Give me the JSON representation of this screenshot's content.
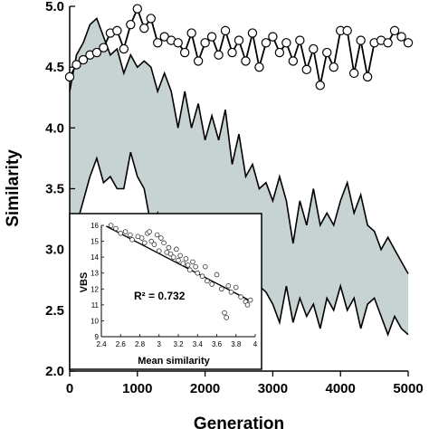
{
  "chart_data": [
    {
      "type": "line",
      "xlabel": "Generation",
      "ylabel": "Similarity",
      "xlim": [
        0,
        5000
      ],
      "ylim": [
        2.0,
        5.0
      ],
      "x_ticks": [
        "0",
        "1000",
        "2000",
        "3000",
        "4000",
        "5000"
      ],
      "y_ticks": [
        "2.0",
        "2.5",
        "3.0",
        "3.5",
        "4.0",
        "4.5",
        "5.0"
      ],
      "colors": {
        "band_fill": "#c7d3d3",
        "line": "#000000",
        "marker_fill": "#ffffff"
      },
      "band_upper": [
        [
          0,
          4.3
        ],
        [
          100,
          4.6
        ],
        [
          200,
          4.7
        ],
        [
          300,
          4.85
        ],
        [
          400,
          4.9
        ],
        [
          500,
          4.75
        ],
        [
          600,
          4.6
        ],
        [
          700,
          4.65
        ],
        [
          800,
          4.45
        ],
        [
          900,
          4.6
        ],
        [
          1000,
          4.5
        ],
        [
          1100,
          4.55
        ],
        [
          1200,
          4.5
        ],
        [
          1300,
          4.3
        ],
        [
          1400,
          4.45
        ],
        [
          1500,
          4.3
        ],
        [
          1600,
          4.0
        ],
        [
          1700,
          4.3
        ],
        [
          1800,
          4.0
        ],
        [
          1900,
          4.2
        ],
        [
          2000,
          3.9
        ],
        [
          2100,
          4.1
        ],
        [
          2200,
          3.9
        ],
        [
          2300,
          4.15
        ],
        [
          2400,
          3.7
        ],
        [
          2500,
          3.95
        ],
        [
          2600,
          3.6
        ],
        [
          2700,
          3.7
        ],
        [
          2800,
          3.5
        ],
        [
          2900,
          3.55
        ],
        [
          3000,
          3.4
        ],
        [
          3100,
          3.6
        ],
        [
          3200,
          3.4
        ],
        [
          3300,
          3.05
        ],
        [
          3400,
          3.4
        ],
        [
          3500,
          3.2
        ],
        [
          3600,
          3.5
        ],
        [
          3700,
          3.2
        ],
        [
          3800,
          3.3
        ],
        [
          3900,
          3.2
        ],
        [
          4000,
          3.4
        ],
        [
          4100,
          3.55
        ],
        [
          4200,
          3.3
        ],
        [
          4300,
          3.45
        ],
        [
          4400,
          3.2
        ],
        [
          4500,
          3.15
        ],
        [
          4600,
          3.0
        ],
        [
          4700,
          3.1
        ],
        [
          4800,
          3.0
        ],
        [
          4900,
          2.9
        ],
        [
          5000,
          2.8
        ]
      ],
      "band_lower": [
        [
          0,
          2.9
        ],
        [
          100,
          3.2
        ],
        [
          200,
          3.4
        ],
        [
          300,
          3.6
        ],
        [
          400,
          3.75
        ],
        [
          500,
          3.55
        ],
        [
          600,
          3.6
        ],
        [
          700,
          3.5
        ],
        [
          800,
          3.5
        ],
        [
          900,
          3.8
        ],
        [
          1000,
          3.6
        ],
        [
          1100,
          3.5
        ],
        [
          1200,
          3.2
        ],
        [
          1300,
          3.3
        ],
        [
          1400,
          2.9
        ],
        [
          1500,
          3.1
        ],
        [
          1600,
          3.05
        ],
        [
          1700,
          2.85
        ],
        [
          1800,
          3.1
        ],
        [
          1900,
          2.8
        ],
        [
          2000,
          2.95
        ],
        [
          2100,
          2.7
        ],
        [
          2200,
          2.85
        ],
        [
          2300,
          2.6
        ],
        [
          2400,
          2.9
        ],
        [
          2500,
          2.55
        ],
        [
          2600,
          2.8
        ],
        [
          2700,
          2.5
        ],
        [
          2800,
          2.7
        ],
        [
          2900,
          2.65
        ],
        [
          3000,
          2.55
        ],
        [
          3100,
          2.4
        ],
        [
          3200,
          2.7
        ],
        [
          3300,
          2.4
        ],
        [
          3400,
          2.6
        ],
        [
          3500,
          2.45
        ],
        [
          3600,
          2.55
        ],
        [
          3700,
          2.35
        ],
        [
          3800,
          2.6
        ],
        [
          3900,
          2.5
        ],
        [
          4000,
          2.7
        ],
        [
          4100,
          2.5
        ],
        [
          4200,
          2.6
        ],
        [
          4300,
          2.35
        ],
        [
          4400,
          2.55
        ],
        [
          4500,
          2.6
        ],
        [
          4600,
          2.45
        ],
        [
          4700,
          2.3
        ],
        [
          4800,
          2.45
        ],
        [
          4900,
          2.35
        ],
        [
          5000,
          2.3
        ]
      ],
      "series": [
        {
          "x": [
            0,
            100,
            200,
            300,
            400,
            500,
            600,
            700,
            800,
            900,
            1000,
            1100,
            1200,
            1300,
            1400,
            1500,
            1600,
            1700,
            1800,
            1900,
            2000,
            2100,
            2200,
            2300,
            2400,
            2500,
            2600,
            2700,
            2800,
            2900,
            3000,
            3100,
            3200,
            3300,
            3400,
            3500,
            3600,
            3700,
            3800,
            3900,
            4000,
            4100,
            4200,
            4300,
            4400,
            4500,
            4600,
            4700,
            4800,
            4900,
            5000
          ],
          "values": [
            4.42,
            4.52,
            4.56,
            4.6,
            4.62,
            4.66,
            4.78,
            4.8,
            4.65,
            4.85,
            4.98,
            4.82,
            4.9,
            4.7,
            4.75,
            4.72,
            4.7,
            4.62,
            4.78,
            4.55,
            4.7,
            4.75,
            4.6,
            4.8,
            4.62,
            4.72,
            4.55,
            4.78,
            4.5,
            4.7,
            4.75,
            4.62,
            4.7,
            4.55,
            4.72,
            4.48,
            4.65,
            4.35,
            4.62,
            4.5,
            4.8,
            4.8,
            4.45,
            4.72,
            4.42,
            4.7,
            4.72,
            4.7,
            4.8,
            4.75,
            4.7
          ]
        }
      ]
    },
    {
      "type": "scatter",
      "xlabel": "Mean similarity",
      "ylabel": "VBS",
      "xlim": [
        2.4,
        4.0
      ],
      "ylim": [
        9,
        16
      ],
      "x_ticks": [
        "2.4",
        "2.6",
        "2.8",
        "3",
        "3.2",
        "3.4",
        "3.6",
        "3.8",
        "4"
      ],
      "y_ticks": [
        "9",
        "10",
        "11",
        "12",
        "13",
        "14",
        "15",
        "16"
      ],
      "annotation": "R² = 0.732",
      "fit_line": [
        [
          2.45,
          15.95
        ],
        [
          3.95,
          11.25
        ]
      ],
      "points": [
        [
          2.5,
          16.0
        ],
        [
          2.55,
          15.8
        ],
        [
          2.6,
          15.5
        ],
        [
          2.65,
          15.6
        ],
        [
          2.7,
          15.4
        ],
        [
          2.72,
          15.1
        ],
        [
          2.78,
          15.3
        ],
        [
          2.82,
          15.2
        ],
        [
          2.85,
          14.9
        ],
        [
          2.88,
          15.5
        ],
        [
          2.9,
          15.6
        ],
        [
          2.92,
          15.0
        ],
        [
          2.95,
          14.8
        ],
        [
          2.98,
          15.4
        ],
        [
          3.0,
          14.4
        ],
        [
          3.02,
          15.2
        ],
        [
          3.05,
          14.9
        ],
        [
          3.08,
          14.3
        ],
        [
          3.1,
          14.6
        ],
        [
          3.12,
          14.2
        ],
        [
          3.15,
          14.0
        ],
        [
          3.18,
          14.5
        ],
        [
          3.2,
          13.8
        ],
        [
          3.22,
          14.1
        ],
        [
          3.25,
          13.6
        ],
        [
          3.28,
          13.9
        ],
        [
          3.3,
          13.5
        ],
        [
          3.32,
          13.2
        ],
        [
          3.35,
          13.7
        ],
        [
          3.38,
          13.4
        ],
        [
          3.4,
          13.0
        ],
        [
          3.45,
          12.8
        ],
        [
          3.48,
          13.4
        ],
        [
          3.5,
          12.5
        ],
        [
          3.55,
          12.3
        ],
        [
          3.6,
          12.9
        ],
        [
          3.65,
          12.0
        ],
        [
          3.68,
          10.5
        ],
        [
          3.7,
          10.2
        ],
        [
          3.72,
          12.2
        ],
        [
          3.75,
          11.8
        ],
        [
          3.8,
          12.1
        ],
        [
          3.85,
          11.5
        ],
        [
          3.9,
          11.2
        ],
        [
          3.92,
          11.0
        ],
        [
          3.95,
          11.3
        ]
      ]
    }
  ]
}
